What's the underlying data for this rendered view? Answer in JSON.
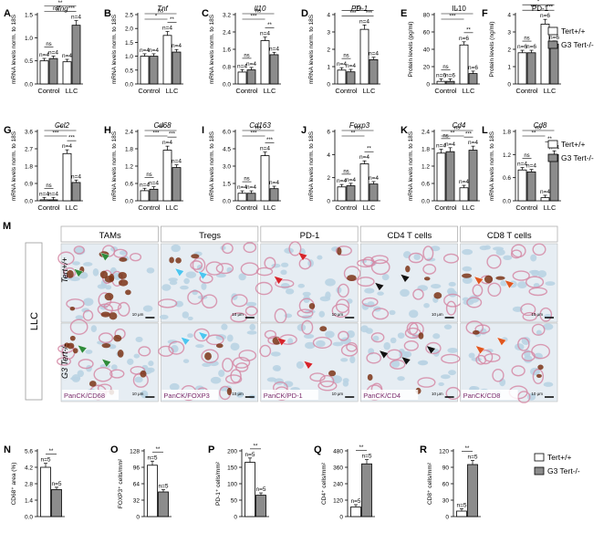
{
  "legend": {
    "wt": "Tert+/+",
    "g3": "G3 Tert-/-"
  },
  "colors": {
    "wt": "#ffffff",
    "g3": "#8c8c8c",
    "stroke": "#000000",
    "panel_border": "#b0b0b0",
    "arrow_green": "#2e8b3a",
    "arrow_cyan": "#4cc6f0",
    "arrow_red": "#d6232a",
    "arrow_black": "#111111",
    "arrow_orange": "#e0561e",
    "stain_pink": "#d58aa6",
    "stain_brown": "#7b3416",
    "stain_blue": "#b9d3e3"
  },
  "chart_data": [
    {
      "type": "bar",
      "letter": "A",
      "title": "Ifng",
      "title_italic": true,
      "ylabel": "mRNA levels norm. to 18S",
      "ylim": [
        0,
        1.5
      ],
      "yticks": [
        "0.0",
        "0.5",
        "1.0",
        "1.5"
      ],
      "categories": [
        "Control",
        "LLC"
      ],
      "series": [
        {
          "name": "Tert+/+",
          "values": [
            0.5,
            0.48
          ],
          "n": [
            "n=4",
            "n=4"
          ]
        },
        {
          "name": "G3 Tert-/-",
          "values": [
            0.55,
            1.27
          ],
          "n": [
            "n=4",
            "n=4"
          ]
        }
      ],
      "sig": [
        {
          "a": 0,
          "b": 2,
          "level": 1,
          "label": "ns"
        },
        {
          "a": 0,
          "b": 3,
          "level": 2,
          "label": "**"
        },
        {
          "a": 2,
          "b": 3,
          "level": 0,
          "label": "***"
        },
        {
          "a": 0,
          "b": 1,
          "level": 0,
          "label": "ns"
        }
      ]
    },
    {
      "type": "bar",
      "letter": "B",
      "title": "Tnf",
      "title_italic": true,
      "ylabel": "mRNA levels norm. to 18S",
      "ylim": [
        0,
        2.5
      ],
      "yticks": [
        "0.0",
        "0.5",
        "1.0",
        "1.5",
        "2.0",
        "2.5"
      ],
      "categories": [
        "Control",
        "LLC"
      ],
      "series": [
        {
          "name": "Tert+/+",
          "values": [
            1.0,
            1.75
          ],
          "n": [
            "n=4",
            "n=4"
          ]
        },
        {
          "name": "G3 Tert-/-",
          "values": [
            1.0,
            1.15
          ],
          "n": [
            "n=4",
            "n=4"
          ]
        }
      ],
      "sig": [
        {
          "a": 0,
          "b": 3,
          "level": 2,
          "label": "ns"
        },
        {
          "a": 0,
          "b": 2,
          "level": 1,
          "label": "*"
        },
        {
          "a": 2,
          "b": 3,
          "level": 0,
          "label": "**"
        }
      ]
    },
    {
      "type": "bar",
      "letter": "C",
      "title": "Il10",
      "title_italic": true,
      "ylabel": "mRNA levels norm. to 18S",
      "ylim": [
        0,
        3.2
      ],
      "yticks": [
        "0.0",
        "0.8",
        "1.6",
        "2.4",
        "3.2"
      ],
      "categories": [
        "Control",
        "LLC"
      ],
      "series": [
        {
          "name": "Tert+/+",
          "values": [
            0.55,
            2.0
          ],
          "n": [
            "n=4",
            "n=4"
          ]
        },
        {
          "name": "G3 Tert-/-",
          "values": [
            0.65,
            1.35
          ],
          "n": [
            "n=4",
            "n=4"
          ]
        }
      ],
      "sig": [
        {
          "a": 0,
          "b": 3,
          "level": 2,
          "label": "ns"
        },
        {
          "a": 0,
          "b": 2,
          "level": 1,
          "label": "***"
        },
        {
          "a": 2,
          "b": 3,
          "level": 0,
          "label": "**"
        },
        {
          "a": 0,
          "b": 1,
          "level": 0,
          "label": "ns"
        }
      ]
    },
    {
      "type": "bar",
      "letter": "D",
      "title": "PD-1",
      "title_italic": true,
      "ylabel": "mRNA levels norm. to 18S",
      "ylim": [
        0,
        4
      ],
      "yticks": [
        "0",
        "1",
        "2",
        "3",
        "4"
      ],
      "categories": [
        "Control",
        "LLC"
      ],
      "series": [
        {
          "name": "Tert+/+",
          "values": [
            0.8,
            3.15
          ],
          "n": [
            "n=4",
            "n=4"
          ]
        },
        {
          "name": "G3 Tert-/-",
          "values": [
            0.7,
            1.4
          ],
          "n": [
            "n=4",
            "n=4"
          ]
        }
      ],
      "sig": [
        {
          "a": 0,
          "b": 3,
          "level": 2,
          "label": "ns"
        },
        {
          "a": 0,
          "b": 2,
          "level": 1,
          "label": "***"
        },
        {
          "a": 2,
          "b": 3,
          "level": 0,
          "label": "***"
        },
        {
          "a": 0,
          "b": 1,
          "level": 0,
          "label": "ns"
        }
      ]
    },
    {
      "type": "bar",
      "letter": "E",
      "title": "IL10",
      "title_italic": false,
      "ylabel": "Protein levels (pg/ml)",
      "ylim": [
        0,
        80
      ],
      "yticks": [
        "0",
        "20",
        "40",
        "60",
        "80"
      ],
      "categories": [
        "Control",
        "LLC"
      ],
      "series": [
        {
          "name": "Tert+/+",
          "values": [
            3,
            45
          ],
          "n": [
            "n=6",
            "n=6"
          ]
        },
        {
          "name": "G3 Tert-/-",
          "values": [
            3,
            12
          ],
          "n": [
            "n=6",
            "n=6"
          ]
        }
      ],
      "sig": [
        {
          "a": 0,
          "b": 3,
          "level": 2,
          "label": "*"
        },
        {
          "a": 0,
          "b": 2,
          "level": 1,
          "label": "***"
        },
        {
          "a": 2,
          "b": 3,
          "level": 0,
          "label": "**"
        },
        {
          "a": 0,
          "b": 1,
          "level": 0,
          "label": "ns"
        }
      ]
    },
    {
      "type": "bar",
      "letter": "F",
      "title": "PD-1",
      "title_italic": false,
      "ylabel": "Protein levels (ng/ml)",
      "ylim": [
        0,
        4
      ],
      "yticks": [
        "0",
        "1",
        "2",
        "3",
        "4"
      ],
      "categories": [
        "Control",
        "LLC"
      ],
      "series": [
        {
          "name": "Tert+/+",
          "values": [
            1.8,
            3.45
          ],
          "n": [
            "n=6",
            "n=6"
          ]
        },
        {
          "name": "G3 Tert-/-",
          "values": [
            1.8,
            2.3
          ],
          "n": [
            "n=6",
            "n=6"
          ]
        }
      ],
      "sig": [
        {
          "a": 0,
          "b": 3,
          "level": 2,
          "label": "*"
        },
        {
          "a": 0,
          "b": 2,
          "level": 1,
          "label": "***"
        },
        {
          "a": 2,
          "b": 3,
          "level": 0,
          "label": "***"
        },
        {
          "a": 0,
          "b": 1,
          "level": 0,
          "label": "ns"
        }
      ]
    },
    {
      "type": "bar",
      "letter": "G",
      "title": "Ccl2",
      "title_italic": true,
      "ylabel": "mRNA levels norm. to 18S",
      "ylim": [
        0,
        3.6
      ],
      "yticks": [
        "0.0",
        "0.9",
        "1.8",
        "2.7",
        "3.6"
      ],
      "categories": [
        "Control",
        "LLC"
      ],
      "series": [
        {
          "name": "Tert+/+",
          "values": [
            0.05,
            2.45
          ],
          "n": [
            "n=4",
            "n=4"
          ]
        },
        {
          "name": "G3 Tert-/-",
          "values": [
            0.05,
            0.95
          ],
          "n": [
            "n=4",
            "n=4"
          ]
        }
      ],
      "sig": [
        {
          "a": 0,
          "b": 3,
          "level": 2,
          "label": "***"
        },
        {
          "a": 0,
          "b": 2,
          "level": 1,
          "label": "***"
        },
        {
          "a": 2,
          "b": 3,
          "level": 0,
          "label": "***"
        },
        {
          "a": 0,
          "b": 1,
          "level": 0,
          "label": "ns"
        }
      ]
    },
    {
      "type": "bar",
      "letter": "H",
      "title": "Cd68",
      "title_italic": true,
      "ylabel": "mRNA levels norm. to 18S",
      "ylim": [
        0,
        2.4
      ],
      "yticks": [
        "0.0",
        "0.6",
        "1.2",
        "1.8",
        "2.4"
      ],
      "categories": [
        "Control",
        "LLC"
      ],
      "series": [
        {
          "name": "Tert+/+",
          "values": [
            0.35,
            1.75
          ],
          "n": [
            "n=4",
            "n=4"
          ]
        },
        {
          "name": "G3 Tert-/-",
          "values": [
            0.4,
            1.15
          ],
          "n": [
            "n=4",
            "n=4"
          ]
        }
      ],
      "sig": [
        {
          "a": 0,
          "b": 3,
          "level": 2,
          "label": "***"
        },
        {
          "a": 0,
          "b": 2,
          "level": 1,
          "label": "***"
        },
        {
          "a": 2,
          "b": 3,
          "level": 0,
          "label": "***"
        },
        {
          "a": 0,
          "b": 1,
          "level": 0,
          "label": "ns"
        }
      ]
    },
    {
      "type": "bar",
      "letter": "I",
      "title": "Cd163",
      "title_italic": true,
      "ylabel": "mRNA levels norm. to 18S",
      "ylim": [
        0,
        6
      ],
      "yticks": [
        "0.0",
        "1.5",
        "3.0",
        "4.5",
        "6.0"
      ],
      "categories": [
        "Control",
        "LLC"
      ],
      "series": [
        {
          "name": "Tert+/+",
          "values": [
            0.65,
            3.9
          ],
          "n": [
            "n=4",
            "n=4"
          ]
        },
        {
          "name": "G3 Tert-/-",
          "values": [
            0.65,
            1.05
          ],
          "n": [
            "n=4",
            "n=4"
          ]
        }
      ],
      "sig": [
        {
          "a": 0,
          "b": 3,
          "level": 2,
          "label": "ns"
        },
        {
          "a": 0,
          "b": 2,
          "level": 1,
          "label": "***"
        },
        {
          "a": 2,
          "b": 3,
          "level": 0,
          "label": "***"
        },
        {
          "a": 0,
          "b": 1,
          "level": 0,
          "label": "ns"
        }
      ]
    },
    {
      "type": "bar",
      "letter": "J",
      "title": "Foxp3",
      "title_italic": true,
      "ylabel": "mRNA levels norm. to 18S",
      "ylim": [
        0,
        6
      ],
      "yticks": [
        "0",
        "2",
        "4",
        "6"
      ],
      "categories": [
        "Control",
        "LLC"
      ],
      "series": [
        {
          "name": "Tert+/+",
          "values": [
            1.2,
            3.2
          ],
          "n": [
            "n=4",
            "n=4"
          ]
        },
        {
          "name": "G3 Tert-/-",
          "values": [
            1.3,
            1.45
          ],
          "n": [
            "n=4",
            "n=4"
          ]
        }
      ],
      "sig": [
        {
          "a": 0,
          "b": 3,
          "level": 2,
          "label": "ns"
        },
        {
          "a": 0,
          "b": 2,
          "level": 1,
          "label": "**"
        },
        {
          "a": 2,
          "b": 3,
          "level": 0,
          "label": "**"
        },
        {
          "a": 0,
          "b": 1,
          "level": 0,
          "label": "ns"
        }
      ]
    },
    {
      "type": "bar",
      "letter": "K",
      "title": "Cd4",
      "title_italic": true,
      "ylabel": "mRNA levels norm. to 18S",
      "ylim": [
        0,
        2.4
      ],
      "yticks": [
        "0.0",
        "0.6",
        "1.2",
        "1.8",
        "2.4"
      ],
      "categories": [
        "Control",
        "LLC"
      ],
      "series": [
        {
          "name": "Tert+/+",
          "values": [
            1.65,
            0.45
          ],
          "n": [
            "n=4",
            "n=4"
          ]
        },
        {
          "name": "G3 Tert-/-",
          "values": [
            1.7,
            1.75
          ],
          "n": [
            "n=4",
            "n=4"
          ]
        }
      ],
      "sig": [
        {
          "a": 0,
          "b": 3,
          "level": 2,
          "label": "ns"
        },
        {
          "a": 0,
          "b": 2,
          "level": 1,
          "label": "**"
        },
        {
          "a": 2,
          "b": 3,
          "level": 0,
          "label": "***"
        },
        {
          "a": 0,
          "b": 1,
          "level": 0,
          "label": "ns"
        }
      ]
    },
    {
      "type": "bar",
      "letter": "L",
      "title": "Cd8",
      "title_italic": true,
      "ylabel": "mRNA levels norm. to 18S",
      "ylim": [
        0,
        1.8
      ],
      "yticks": [
        "0.0",
        "0.6",
        "1.2",
        "1.8"
      ],
      "categories": [
        "Control",
        "LLC"
      ],
      "series": [
        {
          "name": "Tert+/+",
          "values": [
            0.8,
            0.08
          ],
          "n": [
            "n=4",
            "n=4"
          ]
        },
        {
          "name": "G3 Tert-/-",
          "values": [
            0.75,
            1.2
          ],
          "n": [
            "n=4",
            "n=4"
          ]
        }
      ],
      "sig": [
        {
          "a": 0,
          "b": 3,
          "level": 2,
          "label": "ns"
        },
        {
          "a": 0,
          "b": 2,
          "level": 1,
          "label": "**"
        },
        {
          "a": 2,
          "b": 3,
          "level": 0,
          "label": "**"
        },
        {
          "a": 0,
          "b": 1,
          "level": 0,
          "label": "ns"
        }
      ]
    },
    {
      "type": "bar",
      "letter": "N",
      "title": "",
      "ylabel": "CD68⁺ area (%)",
      "ylim": [
        0,
        5.6
      ],
      "yticks": [
        "0.0",
        "1.4",
        "2.8",
        "4.2",
        "5.6"
      ],
      "categories": [
        ""
      ],
      "series": [
        {
          "name": "Tert+/+",
          "values": [
            4.2
          ],
          "n": [
            "n=5"
          ]
        },
        {
          "name": "G3 Tert-/-",
          "values": [
            2.3
          ],
          "n": [
            "n=5"
          ]
        }
      ],
      "sig": [
        {
          "a": 0,
          "b": 1,
          "level": 0,
          "label": "**"
        }
      ]
    },
    {
      "type": "bar",
      "letter": "O",
      "title": "",
      "ylabel": "FOXP3⁺ cells/mm²",
      "ylim": [
        0,
        128
      ],
      "yticks": [
        "0",
        "32",
        "64",
        "96",
        "128"
      ],
      "categories": [
        ""
      ],
      "series": [
        {
          "name": "Tert+/+",
          "values": [
            100
          ],
          "n": [
            "n=5"
          ]
        },
        {
          "name": "G3 Tert-/-",
          "values": [
            48
          ],
          "n": [
            "n=5"
          ]
        }
      ],
      "sig": [
        {
          "a": 0,
          "b": 1,
          "level": 0,
          "label": "**"
        }
      ]
    },
    {
      "type": "bar",
      "letter": "P",
      "title": "",
      "ylabel": "PD-1⁺ cells/mm²",
      "ylim": [
        0,
        200
      ],
      "yticks": [
        "0",
        "50",
        "100",
        "150",
        "200"
      ],
      "categories": [
        ""
      ],
      "series": [
        {
          "name": "Tert+/+",
          "values": [
            165
          ],
          "n": [
            "n=5"
          ]
        },
        {
          "name": "G3 Tert-/-",
          "values": [
            65
          ],
          "n": [
            "n=5"
          ]
        }
      ],
      "sig": [
        {
          "a": 0,
          "b": 1,
          "level": 0,
          "label": "**"
        }
      ]
    },
    {
      "type": "bar",
      "letter": "Q",
      "title": "",
      "ylabel": "CD4⁺ cells/mm²",
      "ylim": [
        0,
        480
      ],
      "yticks": [
        "0",
        "120",
        "240",
        "360",
        "480"
      ],
      "categories": [
        ""
      ],
      "series": [
        {
          "name": "Tert+/+",
          "values": [
            70
          ],
          "n": [
            "n=5"
          ]
        },
        {
          "name": "G3 Tert-/-",
          "values": [
            385
          ],
          "n": [
            "n=5"
          ]
        }
      ],
      "sig": [
        {
          "a": 0,
          "b": 1,
          "level": 0,
          "label": "**"
        }
      ]
    },
    {
      "type": "bar",
      "letter": "R",
      "title": "",
      "ylabel": "CD8⁺ cells/mm²",
      "ylim": [
        0,
        120
      ],
      "yticks": [
        "0",
        "30",
        "60",
        "90",
        "120"
      ],
      "categories": [
        ""
      ],
      "series": [
        {
          "name": "Tert+/+",
          "values": [
            10
          ],
          "n": [
            "n=5"
          ]
        },
        {
          "name": "G3 Tert-/-",
          "values": [
            95
          ],
          "n": [
            "n=5"
          ]
        }
      ],
      "sig": [
        {
          "a": 0,
          "b": 1,
          "level": 0,
          "label": "**"
        }
      ]
    }
  ],
  "micrographs": {
    "letter": "M",
    "side_label": "LLC",
    "rows": [
      "Tert+/+",
      "G3 Tert-/-"
    ],
    "columns": [
      "TAMs",
      "Tregs",
      "PD-1",
      "CD4 T cells",
      "CD8 T cells"
    ],
    "stains": [
      "PanCK/CD68",
      "PanCK/FOXP3",
      "PanCK/PD-1",
      "PanCK/CD4",
      "PanCK/CD8"
    ],
    "scale": "10 μm",
    "arrow_colors": [
      "arrow_green",
      "arrow_cyan",
      "arrow_red",
      "arrow_black",
      "arrow_orange"
    ]
  }
}
